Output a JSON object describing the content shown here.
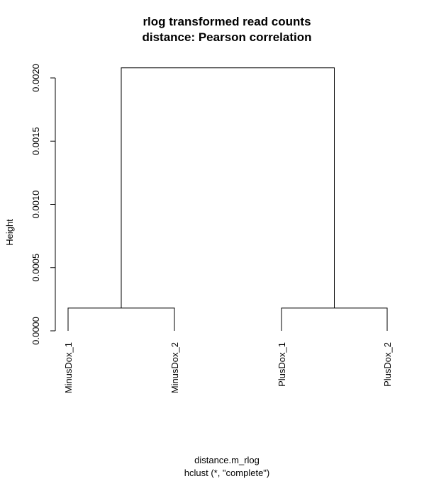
{
  "chart_data": {
    "type": "dendrogram",
    "title": [
      "rlog transformed read counts",
      "distance: Pearson correlation"
    ],
    "ylabel": "Height",
    "xlabel": "distance.m_rlog",
    "sublabel": "hclust (*, \"complete\")",
    "ylim": [
      0,
      0.0021
    ],
    "y_ticks": [
      0.0,
      0.0005,
      0.001,
      0.0015,
      0.002
    ],
    "y_tick_labels": [
      "0.0000",
      "0.0005",
      "0.0010",
      "0.0015",
      "0.0020"
    ],
    "leaves": [
      "MinusDox_1",
      "MinusDox_2",
      "PlusDox_1",
      "PlusDox_2"
    ],
    "merges": [
      {
        "left": "MinusDox_1",
        "right": "MinusDox_2",
        "height": 0.00018
      },
      {
        "left": "PlusDox_1",
        "right": "PlusDox_2",
        "height": 0.00018
      },
      {
        "left": "MinusDox_1+MinusDox_2",
        "right": "PlusDox_1+PlusDox_2",
        "height": 0.00208
      }
    ]
  }
}
